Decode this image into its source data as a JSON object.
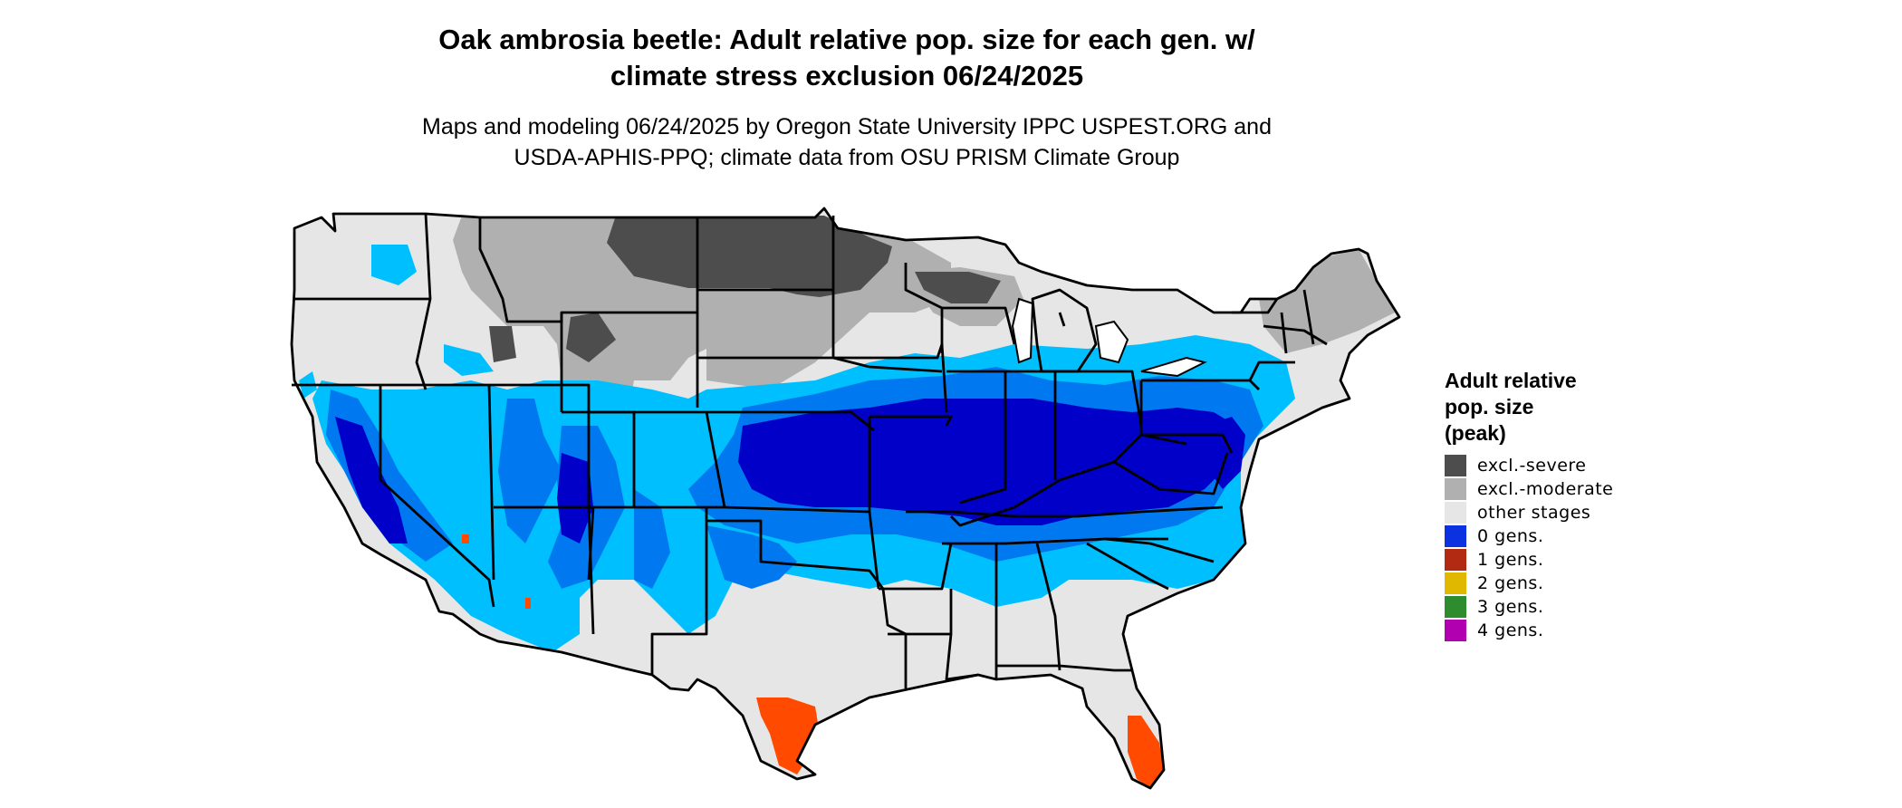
{
  "title_line1": "Oak ambrosia beetle: Adult relative pop. size for each gen. w/",
  "title_line2": "climate stress exclusion 06/24/2025",
  "subtitle_line1": "Maps and modeling 06/24/2025 by Oregon State University IPPC USPEST.ORG and",
  "subtitle_line2": "USDA-APHIS-PPQ; climate data from OSU PRISM Climate Group",
  "legend": {
    "title_line1": "Adult relative",
    "title_line2": "pop. size",
    "title_line3": "(peak)",
    "items": [
      {
        "label": "excl.-severe",
        "color": "#4d4d4d"
      },
      {
        "label": "excl.-moderate",
        "color": "#b0b0b0"
      },
      {
        "label": "other stages",
        "color": "#e6e6e6"
      },
      {
        "label": "0 gens.",
        "color": "#0a32e0"
      },
      {
        "label": "1 gens.",
        "color": "#b22a12"
      },
      {
        "label": "2 gens.",
        "color": "#e0b800"
      },
      {
        "label": "3 gens.",
        "color": "#2e8b2e"
      },
      {
        "label": "4 gens.",
        "color": "#b000b0"
      }
    ]
  },
  "map_colors": {
    "severe": "#4d4d4d",
    "moderate": "#b0b0b0",
    "other": "#e6e6e6",
    "light_blue": "#00bfff",
    "medium_blue": "#0078f0",
    "deep_blue": "#0000c8",
    "orange_red": "#ff4a00"
  }
}
